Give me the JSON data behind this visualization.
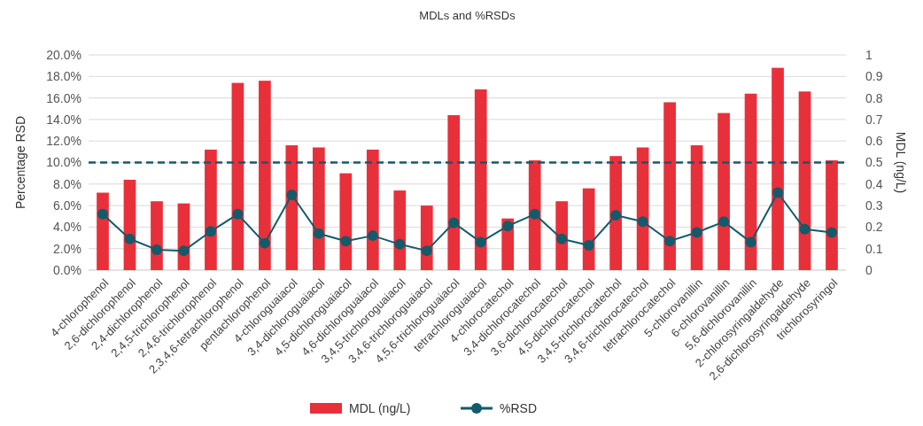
{
  "chart_data": {
    "type": "bar",
    "title": "MDLs and %RSDs",
    "ylabel": "Percentage RSD",
    "y2label": "MDL (ng/L)",
    "categories": [
      "4-chlorophenol",
      "2,6-dichlorophenol",
      "2,4-dichlorophenol",
      "2,4,5-trichlorophenol",
      "2,4,6-trichlorophenol",
      "2,3,4,6-tetrachlorophenol",
      "pentachlorophenol",
      "4-chloroguaiacol",
      "3,4-dichloroguaiacol",
      "4,5-dichloroguaiacol",
      "4,6-dichloroguaiacol",
      "3,4,5-trichloroguaiacol",
      "3,4,6-trichloroguaiacol",
      "4,5,6-trichloroguaiacol",
      "tetrachloroguaiacol",
      "4-chlorocatechol",
      "3,4-dichlorocatechol",
      "3,6-dichlorocatechol",
      "4,5-dichlorocatechol",
      "3,4,5-trichlorocatechol",
      "3,4,6-trichlorocatechol",
      "tetrachlorocatechol",
      "5-chlorovanillin",
      "6-chlorovanillin",
      "5,6-dichlorovanillin",
      "2-chlorosyringaldehyde",
      "2,6-dichlorosyringaldehyde",
      "trichlorosyringol"
    ],
    "series": [
      {
        "name": "MDL (ng/L)",
        "type": "bar",
        "axis": "y2",
        "color": "#e8303a",
        "values": [
          0.36,
          0.42,
          0.32,
          0.31,
          0.56,
          0.87,
          0.88,
          0.58,
          0.57,
          0.45,
          0.56,
          0.37,
          0.3,
          0.72,
          0.84,
          0.24,
          0.51,
          0.32,
          0.38,
          0.53,
          0.57,
          0.78,
          0.58,
          0.73,
          0.82,
          0.94,
          0.83,
          0.51
        ]
      },
      {
        "name": "%RSD",
        "type": "line",
        "axis": "y",
        "color": "#135a6b",
        "marker": "circle",
        "values": [
          5.2,
          2.9,
          1.9,
          1.8,
          3.6,
          5.2,
          2.5,
          7.0,
          3.4,
          2.7,
          3.2,
          2.4,
          1.8,
          4.4,
          2.6,
          4.1,
          5.2,
          2.9,
          2.3,
          5.1,
          4.5,
          2.7,
          3.5,
          4.5,
          2.6,
          7.2,
          3.8,
          3.5
        ]
      }
    ],
    "ylim": [
      0,
      20
    ],
    "yticks": [
      {
        "value": 0,
        "label": "0.0%"
      },
      {
        "value": 2,
        "label": "2.0%"
      },
      {
        "value": 4,
        "label": "4.0%"
      },
      {
        "value": 6,
        "label": "6.0%"
      },
      {
        "value": 8,
        "label": "8.0%"
      },
      {
        "value": 10,
        "label": "10.0%"
      },
      {
        "value": 12,
        "label": "12.0%"
      },
      {
        "value": 14,
        "label": "14.0%"
      },
      {
        "value": 16,
        "label": "16.0%"
      },
      {
        "value": 18,
        "label": "18.0%"
      },
      {
        "value": 20,
        "label": "20.0%"
      }
    ],
    "y2lim": [
      0,
      1
    ],
    "y2ticks": [
      0,
      0.1,
      0.2,
      0.3,
      0.4,
      0.5,
      0.6,
      0.7,
      0.8,
      0.9,
      1
    ],
    "ref_lines": [
      {
        "axis": "y",
        "value": 10,
        "color": "#135a6b",
        "line_style": "dashed"
      }
    ],
    "grid": "y",
    "legend": "bottom"
  }
}
